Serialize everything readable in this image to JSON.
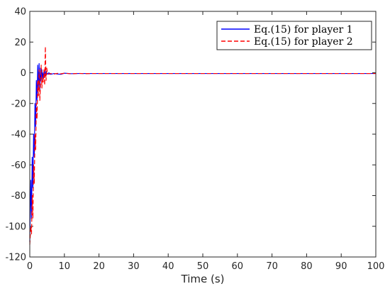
{
  "chart_data": {
    "type": "line",
    "title": "",
    "xlabel": "Time (s)",
    "ylabel": "",
    "xlim": [
      0,
      100
    ],
    "ylim": [
      -120,
      40
    ],
    "xticks": [
      0,
      10,
      20,
      30,
      40,
      50,
      60,
      70,
      80,
      90,
      100
    ],
    "yticks": [
      -120,
      -100,
      -80,
      -60,
      -40,
      -20,
      0,
      20,
      40
    ],
    "grid": false,
    "legend_position": "top-right",
    "series": [
      {
        "name": "Eq.(15) for player 1",
        "color": "#0000ff",
        "style": "solid",
        "x": [
          0,
          0.3,
          0.5,
          0.7,
          0.9,
          1.1,
          1.3,
          1.5,
          1.7,
          1.9,
          2.1,
          2.3,
          2.5,
          2.7,
          2.9,
          3.1,
          3.3,
          3.5,
          3.7,
          3.9,
          4.1,
          4.3,
          4.5,
          4.7,
          4.9,
          5.1,
          5.5,
          6,
          7,
          8,
          9,
          10,
          12,
          14,
          16,
          18,
          20,
          25,
          30,
          35,
          40,
          45,
          50,
          55,
          60,
          65,
          70,
          75,
          80,
          85,
          90,
          95,
          100
        ],
        "y": [
          -110,
          -70,
          -95,
          -55,
          -75,
          -40,
          -55,
          -20,
          -35,
          -5,
          -18,
          5,
          -10,
          6,
          -12,
          3,
          -5,
          2,
          -4,
          0,
          -3,
          1,
          -2,
          1,
          0,
          -1,
          0,
          -1,
          -0.5,
          -0.8,
          -1,
          -0.3,
          -0.6,
          -0.5,
          -0.5,
          -0.5,
          -0.5,
          -0.5,
          -0.5,
          -0.5,
          -0.5,
          -0.5,
          -0.5,
          -0.5,
          -0.5,
          -0.5,
          -0.5,
          -0.5,
          -0.5,
          -0.5,
          -0.5,
          -0.5,
          -0.5
        ]
      },
      {
        "name": "Eq.(15) for player 2",
        "color": "#ff0000",
        "style": "dashed",
        "x": [
          0,
          0.3,
          0.5,
          0.7,
          0.9,
          1.1,
          1.3,
          1.5,
          1.7,
          1.9,
          2.1,
          2.3,
          2.5,
          2.7,
          2.9,
          3.1,
          3.3,
          3.5,
          3.7,
          3.9,
          4.1,
          4.3,
          4.5,
          4.7,
          4.9,
          5.1,
          5.5,
          6,
          7,
          8,
          9,
          10,
          12,
          14,
          16,
          18,
          20,
          25,
          30,
          35,
          40,
          45,
          50,
          55,
          60,
          65,
          70,
          75,
          80,
          85,
          90,
          95,
          100
        ],
        "y": [
          -112,
          -100,
          -105,
          -80,
          -95,
          -60,
          -72,
          -40,
          -50,
          -20,
          -30,
          -5,
          -15,
          2,
          -18,
          -8,
          5,
          -10,
          -3,
          -6,
          2,
          -8,
          17,
          -5,
          3,
          0,
          -1,
          -0.5,
          -0.8,
          -0.4,
          -0.7,
          -0.3,
          -0.7,
          -0.4,
          -0.6,
          -0.5,
          -0.5,
          -0.5,
          -0.5,
          -0.5,
          -0.5,
          -0.5,
          -0.5,
          -0.5,
          -0.5,
          -0.5,
          -0.5,
          -0.5,
          -0.5,
          -0.5,
          -0.5,
          -0.5,
          -0.5
        ]
      }
    ]
  }
}
